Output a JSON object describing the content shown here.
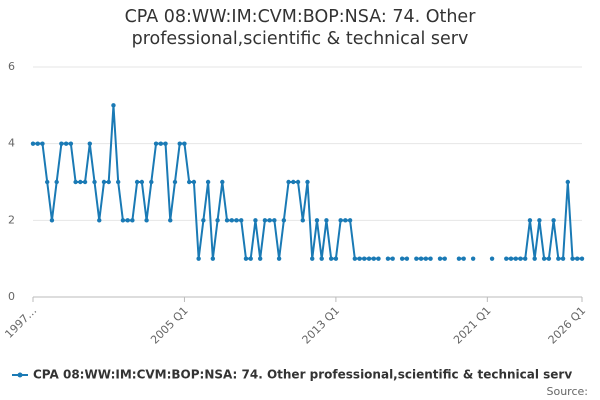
{
  "chart_data": {
    "type": "line",
    "title": "CPA 08:WW:IM:CVM:BOP:NSA: 74. Other professional,scientific & technical serv",
    "source": "Source:",
    "categories": [
      "1997…",
      null,
      null,
      null,
      null,
      null,
      null,
      null,
      null,
      null,
      null,
      null,
      null,
      null,
      null,
      null,
      null,
      null,
      null,
      null,
      null,
      null,
      null,
      null,
      null,
      null,
      null,
      null,
      null,
      null,
      null,
      null,
      "2005 Q1",
      null,
      null,
      null,
      null,
      null,
      null,
      null,
      null,
      null,
      null,
      null,
      null,
      null,
      null,
      null,
      null,
      null,
      null,
      null,
      null,
      null,
      null,
      null,
      null,
      null,
      null,
      null,
      null,
      null,
      null,
      null,
      "2013 Q1",
      null,
      null,
      null,
      null,
      null,
      null,
      null,
      null,
      null,
      null,
      null,
      null,
      null,
      null,
      null,
      null,
      null,
      null,
      null,
      null,
      null,
      null,
      null,
      null,
      null,
      null,
      null,
      null,
      null,
      null,
      null,
      "2021 Q1",
      null,
      null,
      null,
      null,
      null,
      null,
      null,
      null,
      null,
      null,
      null,
      null,
      null,
      null,
      null,
      null,
      null,
      null,
      null,
      "2026 Q1"
    ],
    "series": [
      {
        "name": "CPA 08:WW:IM:CVM:BOP:NSA: 74. Other professional,scientific & technical serv",
        "color": "#1a7ab5",
        "values": [
          4,
          4,
          4,
          3,
          2,
          3,
          4,
          4,
          4,
          3,
          3,
          3,
          4,
          3,
          2,
          3,
          3,
          5,
          3,
          2,
          2,
          2,
          3,
          3,
          2,
          3,
          4,
          4,
          4,
          2,
          3,
          4,
          4,
          3,
          3,
          1,
          2,
          3,
          1,
          2,
          3,
          2,
          2,
          2,
          2,
          1,
          1,
          2,
          1,
          2,
          2,
          2,
          1,
          2,
          3,
          3,
          3,
          2,
          3,
          1,
          2,
          1,
          2,
          1,
          1,
          2,
          2,
          2,
          1,
          1,
          1,
          1,
          1,
          1,
          null,
          1,
          1,
          null,
          1,
          1,
          null,
          1,
          1,
          1,
          1,
          null,
          1,
          1,
          null,
          null,
          1,
          1,
          null,
          1,
          null,
          null,
          null,
          1,
          null,
          null,
          1,
          1,
          1,
          1,
          1,
          2,
          1,
          2,
          1,
          1,
          2,
          1,
          1,
          3,
          1,
          1,
          1
        ]
      }
    ],
    "ylim": [
      0,
      6.0
    ],
    "yticks": [
      0,
      2,
      4,
      6
    ],
    "grid": true
  }
}
